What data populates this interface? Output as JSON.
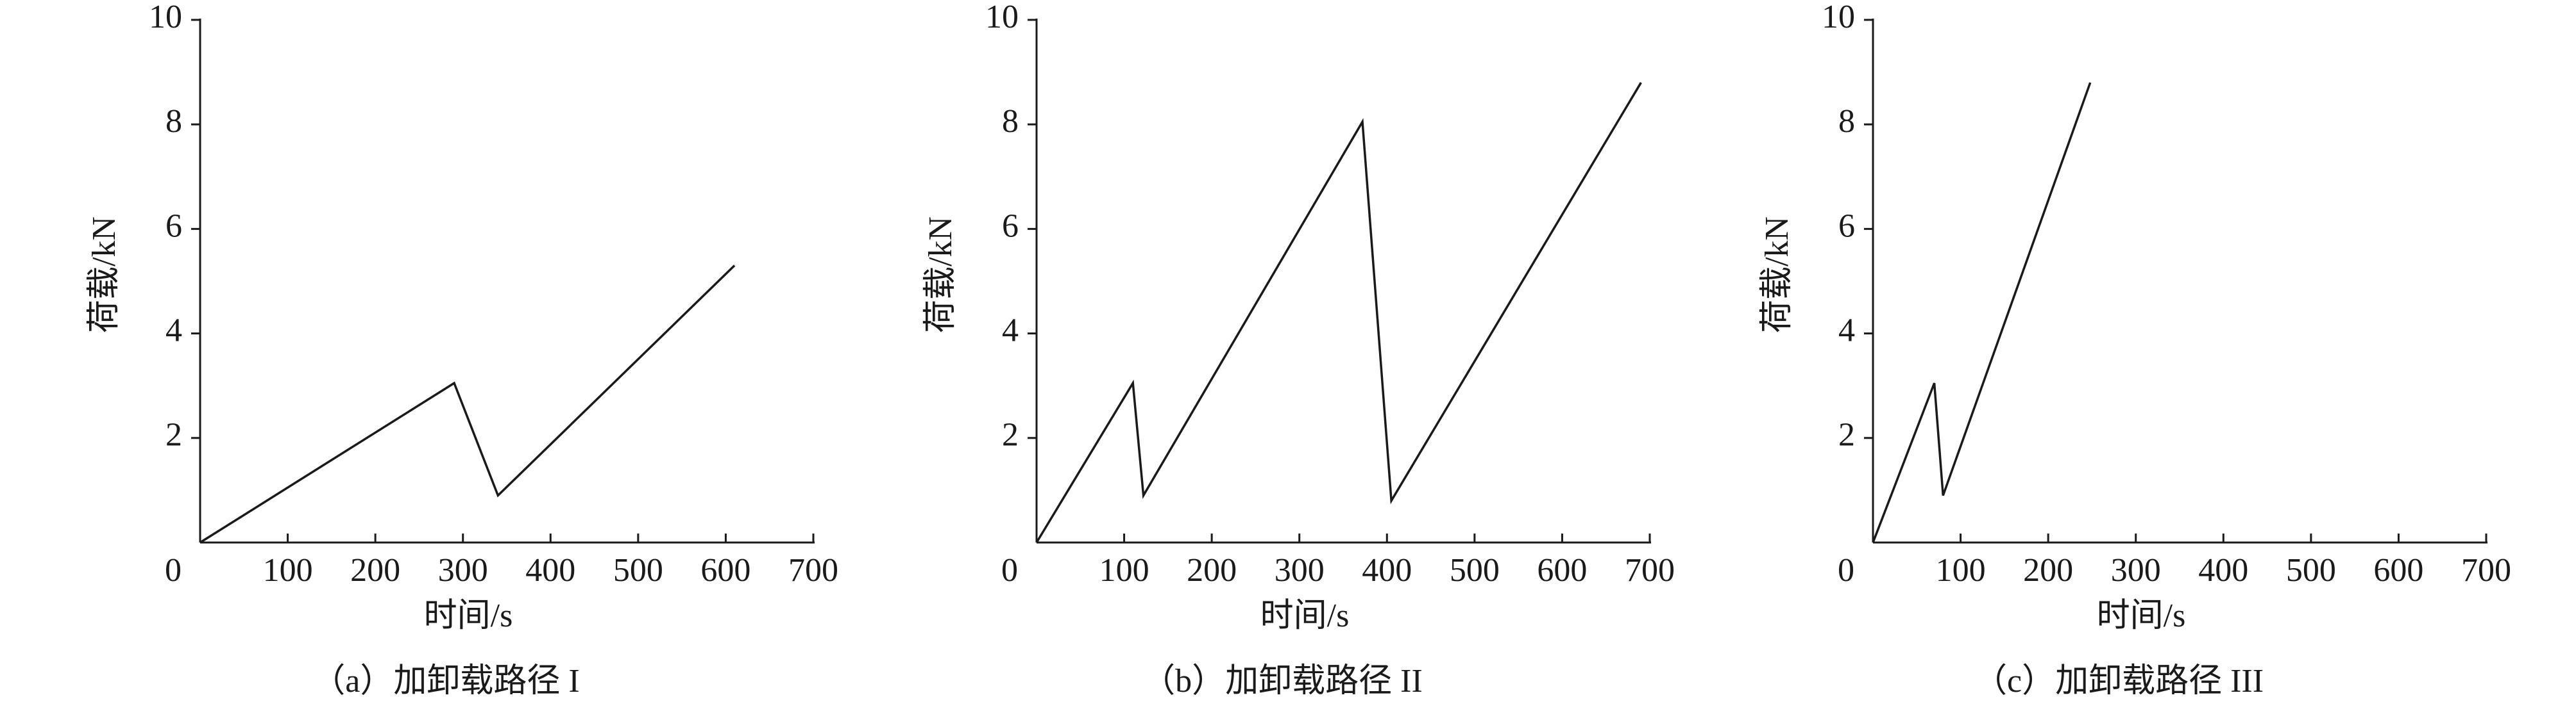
{
  "chart_data": [
    {
      "type": "line",
      "title": "（a）加卸载路径 I",
      "xlabel": "时间/s",
      "ylabel": "荷载/kN",
      "x": [
        0,
        290,
        340,
        610
      ],
      "values": [
        0,
        3.05,
        0.9,
        5.3
      ],
      "color": "#1a1a1a",
      "xlim": [
        0,
        700
      ],
      "ylim": [
        0,
        10
      ],
      "xticks": [
        0,
        100,
        200,
        300,
        400,
        500,
        600,
        700
      ],
      "yticks": [
        2,
        4,
        6,
        8,
        10
      ]
    },
    {
      "type": "line",
      "title": "（b）加卸载路径 II",
      "xlabel": "时间/s",
      "ylabel": "荷载/kN",
      "x": [
        0,
        110,
        122,
        372,
        405,
        690
      ],
      "values": [
        0,
        3.05,
        0.9,
        8.05,
        0.8,
        8.8
      ],
      "color": "#1a1a1a",
      "xlim": [
        0,
        700
      ],
      "ylim": [
        0,
        10
      ],
      "xticks": [
        0,
        100,
        200,
        300,
        400,
        500,
        600,
        700
      ],
      "yticks": [
        2,
        4,
        6,
        8,
        10
      ]
    },
    {
      "type": "line",
      "title": "（c）加卸载路径 III",
      "xlabel": "时间/s",
      "ylabel": "荷载/kN",
      "x": [
        0,
        70,
        80,
        248
      ],
      "values": [
        0,
        3.05,
        0.9,
        8.8
      ],
      "color": "#1a1a1a",
      "xlim": [
        0,
        700
      ],
      "ylim": [
        0,
        10
      ],
      "xticks": [
        0,
        100,
        200,
        300,
        400,
        500,
        600,
        700
      ],
      "yticks": [
        2,
        4,
        6,
        8,
        10
      ]
    }
  ]
}
